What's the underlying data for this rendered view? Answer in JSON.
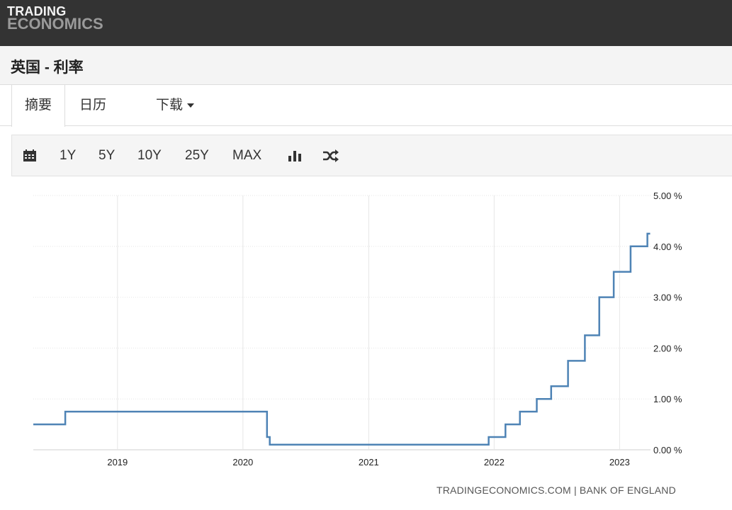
{
  "header": {
    "logo_line1": "TRADING",
    "logo_line2": "ECONOMICS"
  },
  "page": {
    "title": "英国 - 利率"
  },
  "tabs": [
    {
      "label": "摘要",
      "active": true
    },
    {
      "label": "日历"
    },
    {
      "label": "下载"
    }
  ],
  "toolbar": {
    "ranges": [
      "1Y",
      "5Y",
      "10Y",
      "25Y",
      "MAX"
    ],
    "icons": [
      "calendar-icon",
      "bar-chart-icon",
      "shuffle-icon"
    ]
  },
  "source": "TRADINGECONOMICS.COM | BANK OF ENGLAND",
  "colors": {
    "line": "#4e83b5",
    "topbar": "#333333"
  },
  "chart_data": {
    "type": "line",
    "title": "",
    "xlabel": "",
    "ylabel": "",
    "ylim": [
      0,
      5
    ],
    "xlim": [
      "2018-05-01",
      "2023-04-01"
    ],
    "step": true,
    "grid": true,
    "y_axis_position": "right",
    "x_ticks": [
      "2019",
      "2020",
      "2021",
      "2022",
      "2023"
    ],
    "y_ticks": [
      "0.00 %",
      "1.00 %",
      "2.00 %",
      "3.00 %",
      "4.00 %",
      "5.00 %"
    ],
    "series": [
      {
        "x": [
          "2018-05-01",
          "2018-08-02",
          "2020-03-11",
          "2020-03-19",
          "2021-12-16",
          "2022-02-03",
          "2022-03-17",
          "2022-05-05",
          "2022-06-16",
          "2022-08-04",
          "2022-09-22",
          "2022-11-03",
          "2022-12-15",
          "2023-02-02",
          "2023-03-23",
          "2023-03-31"
        ],
        "values": [
          0.5,
          0.75,
          0.25,
          0.1,
          0.25,
          0.5,
          0.75,
          1.0,
          1.25,
          1.75,
          2.25,
          3.0,
          3.5,
          4.0,
          4.25,
          4.25
        ]
      }
    ]
  }
}
